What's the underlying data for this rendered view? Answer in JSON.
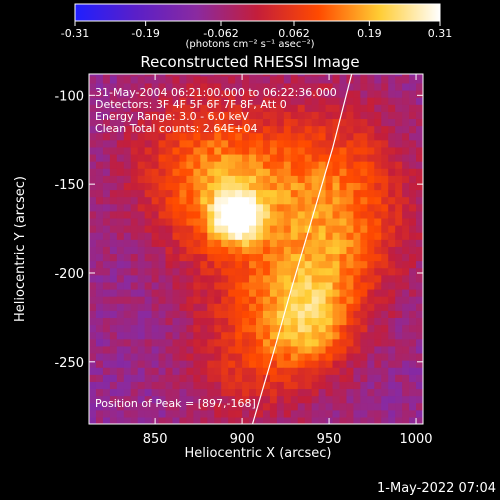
{
  "chart_data": {
    "type": "heatmap",
    "title": "Reconstructed RHESSI Image",
    "xlabel": "Heliocentric X (arcsec)",
    "ylabel": "Heliocentric Y (arcsec)",
    "xlim": [
      812,
      1004
    ],
    "ylim": [
      -285,
      -88
    ],
    "x_ticks": [
      850,
      900,
      950,
      1000
    ],
    "y_ticks": [
      -100,
      -150,
      -200,
      -250
    ],
    "colorbar": {
      "ticks": [
        "-0.31",
        "-0.19",
        "-0.062",
        "0.062",
        "0.19",
        "0.31"
      ],
      "range": [
        -0.31,
        0.31
      ],
      "label": "(photons cm⁻² s⁻¹ asec⁻²)",
      "colors": [
        "#1f1fff",
        "#5a1fc8",
        "#8a2aa0",
        "#c41e3a",
        "#ff4a00",
        "#ffcc33",
        "#ffffff"
      ]
    },
    "info_lines": [
      "31-May-2004 06:21:00.000 to 06:22:36.000",
      "Detectors: 3F 4F 5F 6F 7F 8F, Att 0",
      "Energy Range: 3.0 - 6.0 keV",
      "Clean     Total counts: 2.64E+04"
    ],
    "peak_label": "Position of Peak = [897,-168]",
    "peak": {
      "x": 897,
      "y": -168
    },
    "sources": [
      {
        "x": 897,
        "y": -168,
        "sigma": 9,
        "amp": 0.31
      },
      {
        "x": 893,
        "y": -160,
        "sigma": 28,
        "amp": 0.16
      },
      {
        "x": 875,
        "y": -135,
        "sigma": 30,
        "amp": 0.12
      },
      {
        "x": 950,
        "y": -140,
        "sigma": 30,
        "amp": 0.13
      },
      {
        "x": 960,
        "y": -175,
        "sigma": 28,
        "amp": 0.12
      },
      {
        "x": 940,
        "y": -232,
        "sigma": 18,
        "amp": 0.16
      },
      {
        "x": 945,
        "y": -205,
        "sigma": 22,
        "amp": 0.12
      },
      {
        "x": 910,
        "y": -220,
        "sigma": 26,
        "amp": 0.1
      },
      {
        "x": 905,
        "y": -255,
        "sigma": 25,
        "amp": 0.09
      }
    ],
    "background": -0.08,
    "limb_points": [
      {
        "x": 963,
        "y": -88
      },
      {
        "x": 952,
        "y": -130
      },
      {
        "x": 940,
        "y": -170
      },
      {
        "x": 928,
        "y": -210
      },
      {
        "x": 918,
        "y": -245
      },
      {
        "x": 906,
        "y": -285
      }
    ]
  },
  "footer_timestamp": "1-May-2022 07:04"
}
